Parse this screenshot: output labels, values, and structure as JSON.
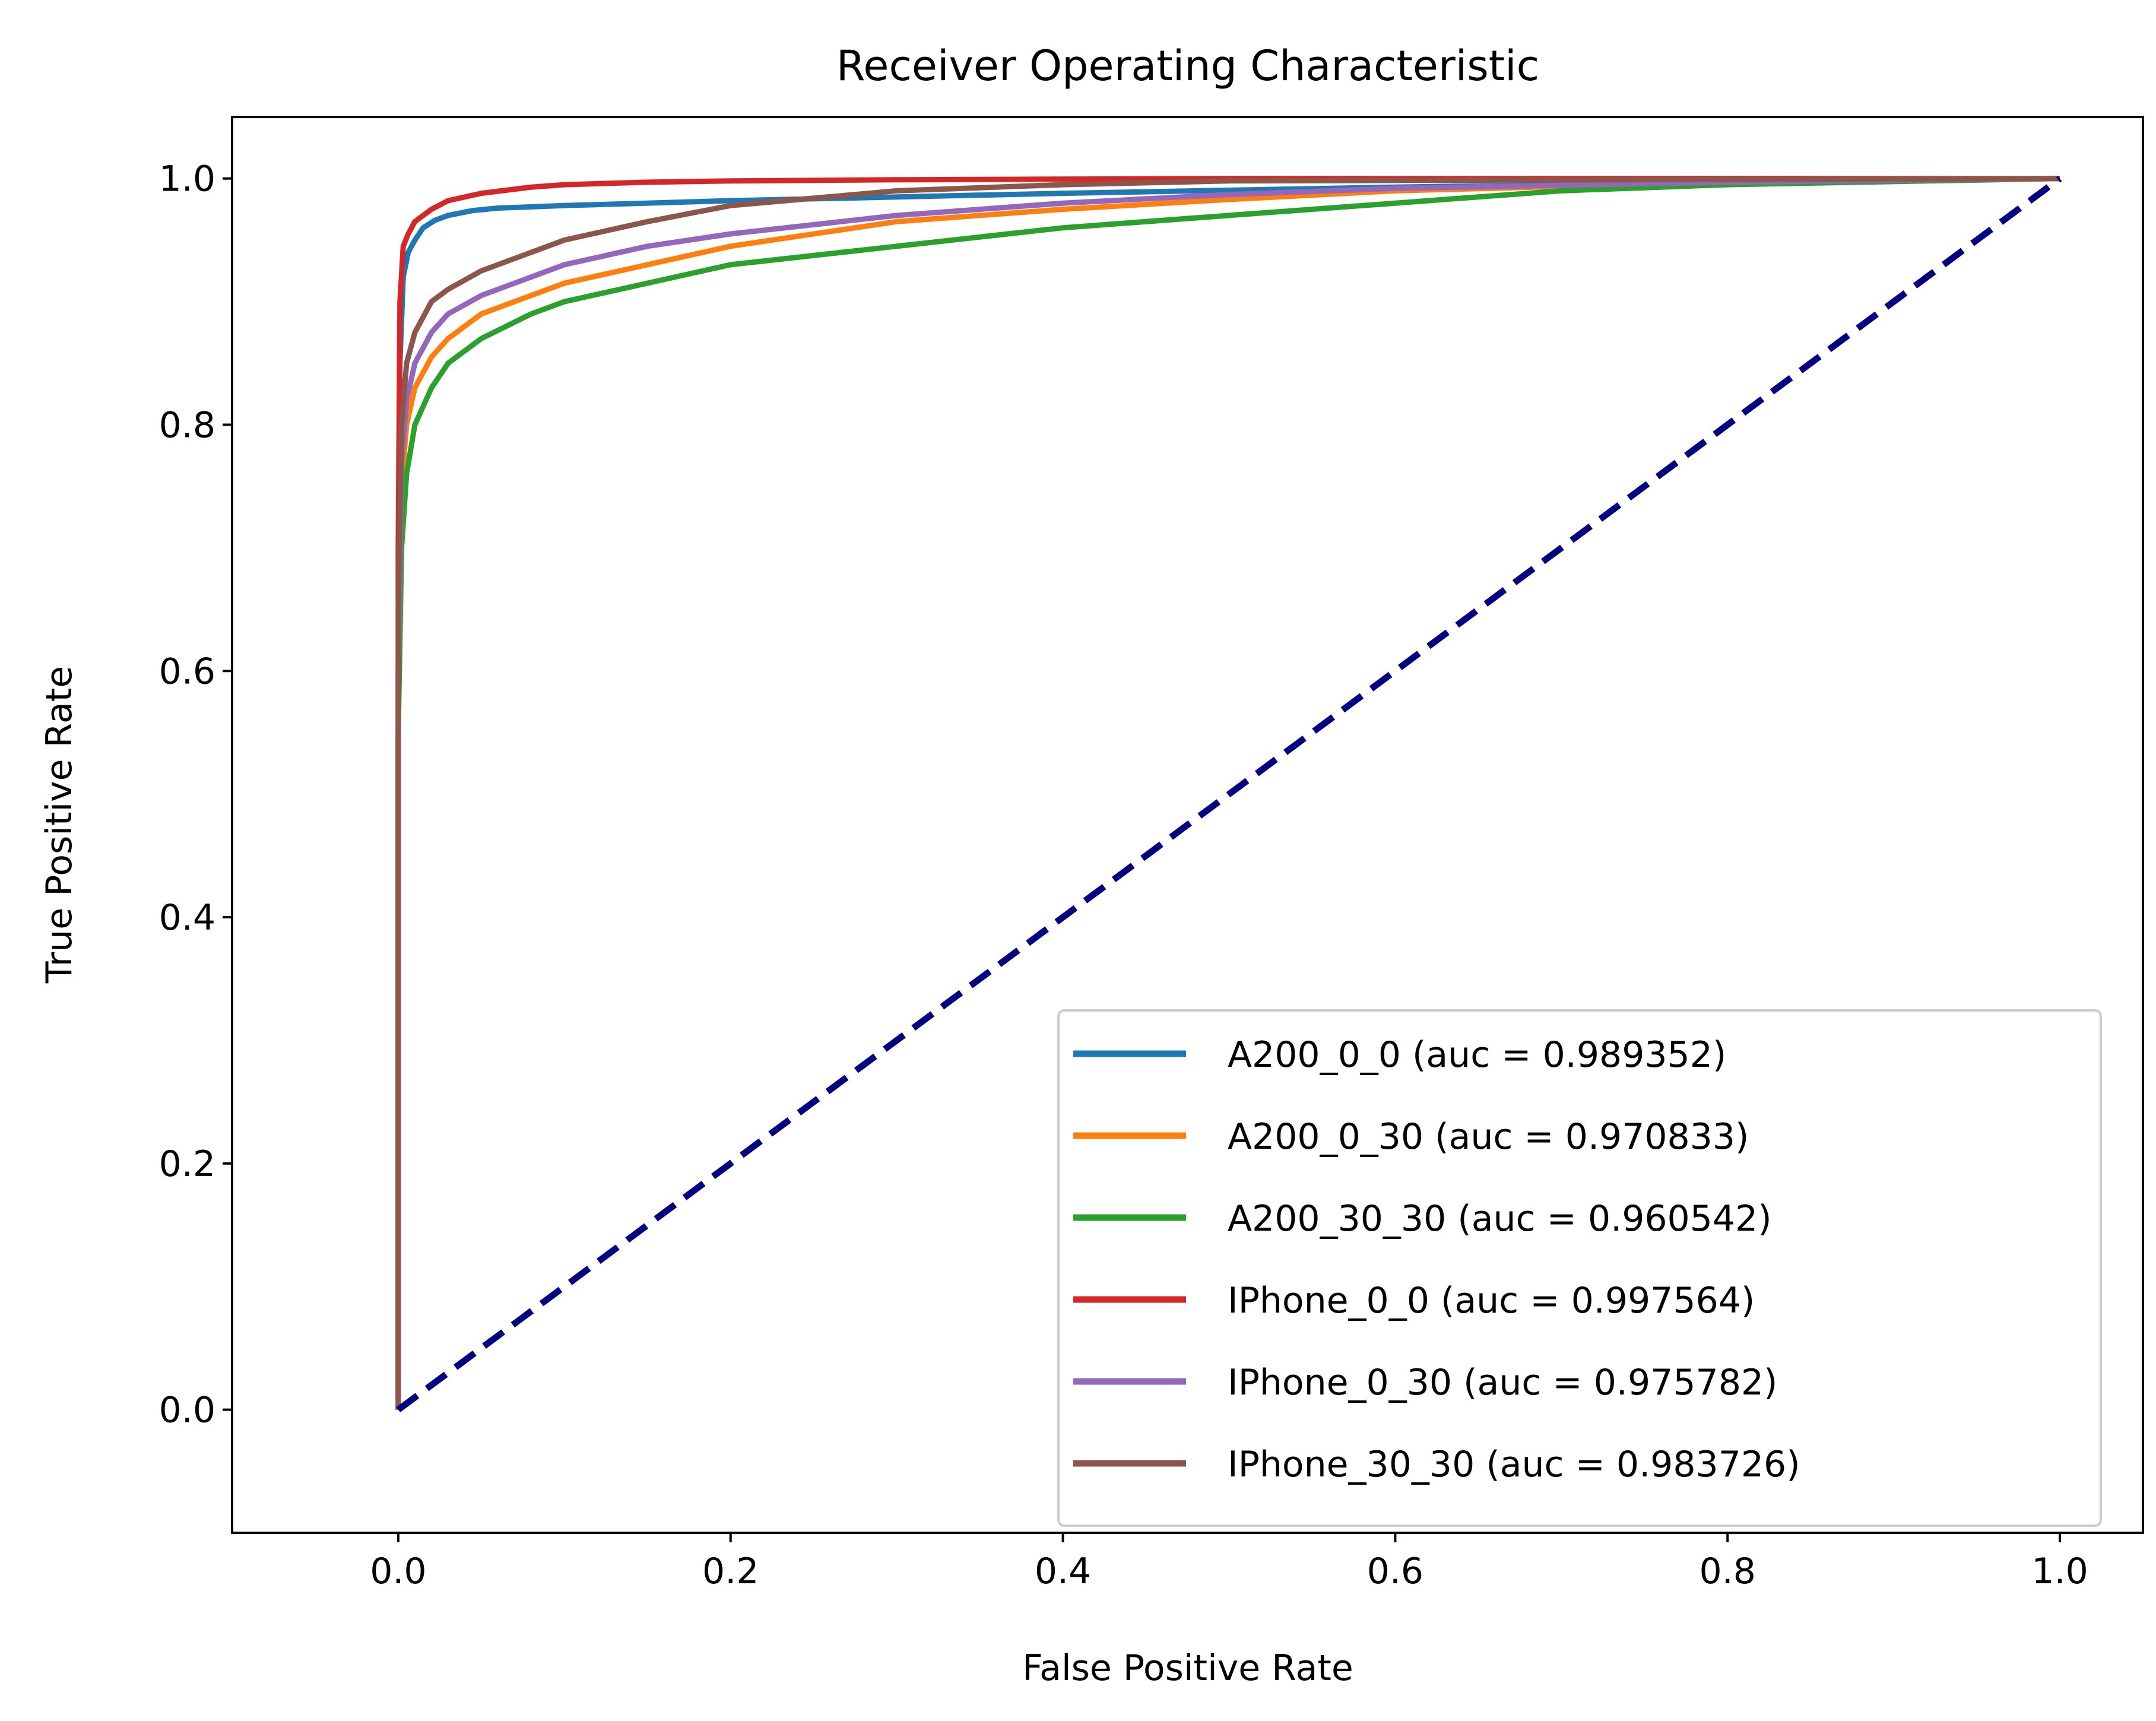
{
  "chart_data": {
    "type": "line",
    "title": "Receiver Operating Characteristic",
    "xlabel": "False Positive Rate",
    "ylabel": "True Positive Rate",
    "xlim": [
      -0.1,
      1.05
    ],
    "ylim": [
      -0.1,
      1.05
    ],
    "xticks": [
      "0.0",
      "0.2",
      "0.4",
      "0.6",
      "0.8",
      "1.0"
    ],
    "yticks": [
      "0.0",
      "0.2",
      "0.4",
      "0.6",
      "0.8",
      "1.0"
    ],
    "grid": false,
    "legend_position": "lower-right",
    "series": [
      {
        "name": "A200_0_0 (auc = 0.989352)",
        "color": "#1f77b4",
        "x": [
          0,
          0,
          0.001,
          0.003,
          0.006,
          0.01,
          0.015,
          0.022,
          0.03,
          0.045,
          0.06,
          0.1,
          0.2,
          0.4,
          0.6,
          0.8,
          1.0
        ],
        "y": [
          0,
          0.6,
          0.85,
          0.92,
          0.94,
          0.95,
          0.96,
          0.966,
          0.97,
          0.974,
          0.976,
          0.978,
          0.982,
          0.988,
          0.993,
          0.997,
          1.0
        ]
      },
      {
        "name": "A200_0_30 (auc = 0.970833)",
        "color": "#ff7f0e",
        "x": [
          0,
          0,
          0.002,
          0.005,
          0.01,
          0.02,
          0.03,
          0.05,
          0.08,
          0.1,
          0.15,
          0.2,
          0.3,
          0.4,
          0.5,
          0.6,
          0.8,
          1.0
        ],
        "y": [
          0,
          0.6,
          0.75,
          0.8,
          0.83,
          0.855,
          0.87,
          0.89,
          0.905,
          0.915,
          0.93,
          0.945,
          0.965,
          0.975,
          0.983,
          0.99,
          0.997,
          1.0
        ]
      },
      {
        "name": "A200_30_30 (auc = 0.960542)",
        "color": "#2ca02c",
        "x": [
          0,
          0,
          0.002,
          0.005,
          0.01,
          0.02,
          0.03,
          0.05,
          0.08,
          0.1,
          0.15,
          0.2,
          0.3,
          0.4,
          0.5,
          0.6,
          0.7,
          0.8,
          1.0
        ],
        "y": [
          0,
          0.55,
          0.7,
          0.76,
          0.8,
          0.83,
          0.85,
          0.87,
          0.89,
          0.9,
          0.915,
          0.93,
          0.945,
          0.96,
          0.97,
          0.98,
          0.99,
          0.995,
          1.0
        ]
      },
      {
        "name": "IPhone_0_0 (auc = 0.997564)",
        "color": "#d62728",
        "x": [
          0,
          0,
          0.001,
          0.003,
          0.006,
          0.01,
          0.02,
          0.03,
          0.05,
          0.08,
          0.1,
          0.15,
          0.2,
          0.3,
          0.5,
          1.0
        ],
        "y": [
          0,
          0.7,
          0.9,
          0.945,
          0.955,
          0.965,
          0.975,
          0.982,
          0.988,
          0.993,
          0.995,
          0.997,
          0.998,
          0.999,
          1.0,
          1.0
        ]
      },
      {
        "name": "IPhone_0_30 (auc = 0.975782)",
        "color": "#9467bd",
        "x": [
          0,
          0,
          0.002,
          0.005,
          0.01,
          0.02,
          0.03,
          0.05,
          0.08,
          0.1,
          0.15,
          0.2,
          0.3,
          0.4,
          0.5,
          0.6,
          0.8,
          1.0
        ],
        "y": [
          0,
          0.6,
          0.77,
          0.82,
          0.85,
          0.875,
          0.89,
          0.905,
          0.92,
          0.93,
          0.945,
          0.955,
          0.97,
          0.98,
          0.987,
          0.992,
          0.997,
          1.0
        ]
      },
      {
        "name": "IPhone_30_30 (auc = 0.983726)",
        "color": "#8c564b",
        "x": [
          0,
          0,
          0.002,
          0.005,
          0.01,
          0.02,
          0.03,
          0.05,
          0.08,
          0.1,
          0.15,
          0.2,
          0.3,
          0.4,
          0.5,
          1.0
        ],
        "y": [
          0,
          0.65,
          0.8,
          0.85,
          0.875,
          0.9,
          0.91,
          0.925,
          0.94,
          0.95,
          0.965,
          0.978,
          0.99,
          0.995,
          0.998,
          1.0
        ]
      }
    ],
    "reference_line": {
      "color": "#000080",
      "style": "dashed",
      "x": [
        0,
        1
      ],
      "y": [
        0,
        1
      ]
    }
  }
}
